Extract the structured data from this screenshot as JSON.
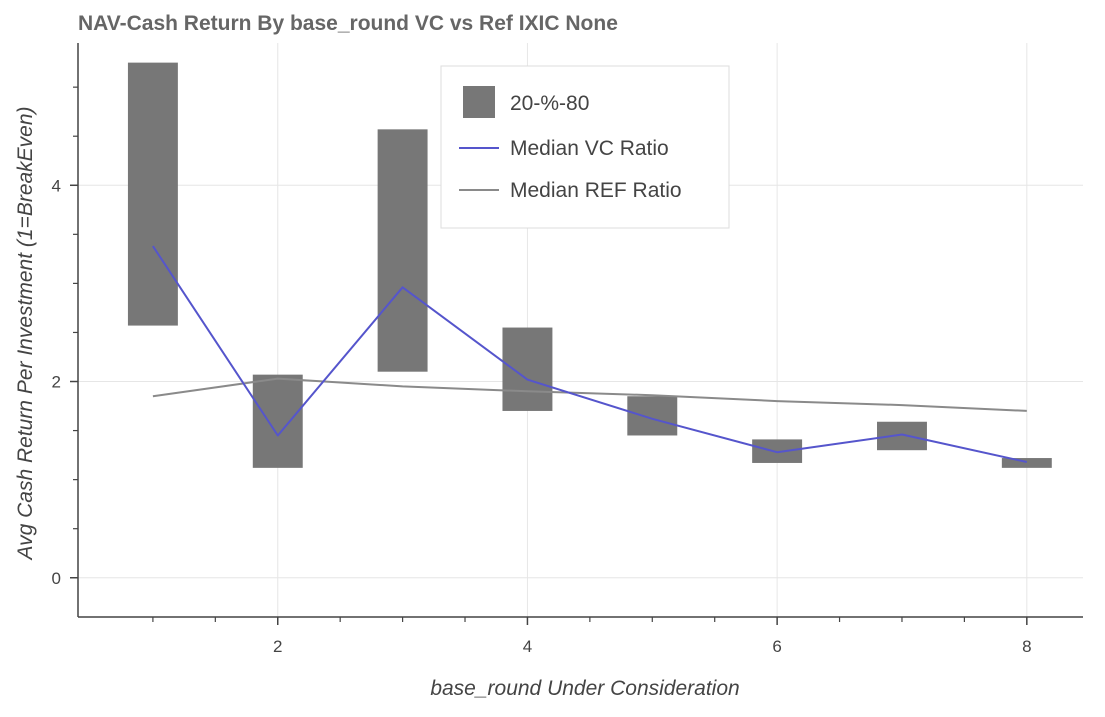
{
  "chart_data": {
    "type": "bar",
    "title": "NAV-Cash Return By base_round VC vs Ref IXIC None",
    "xlabel": "base_round Under Consideration",
    "ylabel": "Avg Cash Return Per Investment (1=BreakEven)",
    "xlim": [
      0.4,
      8.45
    ],
    "ylim": [
      -0.4,
      5.45
    ],
    "x_ticks": [
      2,
      4,
      6,
      8
    ],
    "y_ticks": [
      0,
      2,
      4
    ],
    "x": [
      1,
      2,
      3,
      4,
      5,
      6,
      7,
      8
    ],
    "series": [
      {
        "name": "20-%-80",
        "type": "bar",
        "color": "#777777",
        "low": [
          2.57,
          1.12,
          2.1,
          1.7,
          1.45,
          1.17,
          1.3,
          1.12
        ],
        "high": [
          5.25,
          2.07,
          4.57,
          2.55,
          1.85,
          1.41,
          1.59,
          1.22
        ]
      },
      {
        "name": "Median VC Ratio",
        "type": "line",
        "color": "#5555cc",
        "values": [
          3.38,
          1.45,
          2.96,
          2.02,
          1.62,
          1.28,
          1.46,
          1.18
        ]
      },
      {
        "name": "Median REF Ratio",
        "type": "line",
        "color": "#8a8a8a",
        "values": [
          1.85,
          2.03,
          1.95,
          1.9,
          1.86,
          1.8,
          1.76,
          1.7
        ]
      }
    ],
    "grid": true,
    "legend_position": "top-right"
  }
}
